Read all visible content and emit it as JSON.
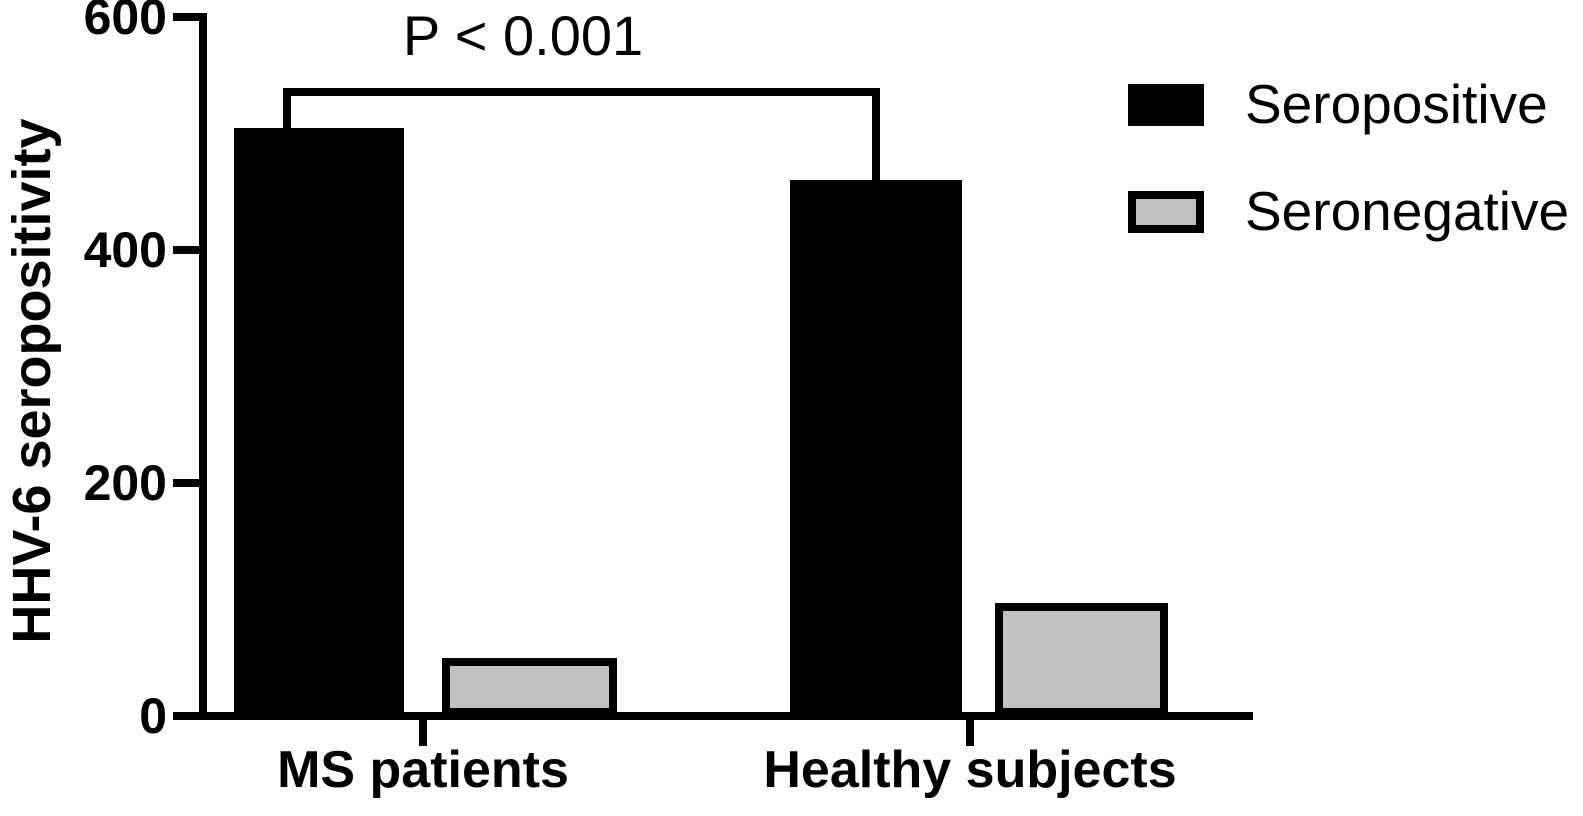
{
  "chart_data": {
    "type": "bar",
    "title": "",
    "xlabel": "",
    "ylabel": "HHV-6 seropositivity",
    "categories": [
      "MS patients",
      "Healthy subjects"
    ],
    "series": [
      {
        "name": "Seropositive",
        "color": "#000000",
        "values": [
          505,
          460
        ]
      },
      {
        "name": "Seronegative",
        "color": "#c1c1c1",
        "values": [
          50,
          97
        ]
      }
    ],
    "ylim": [
      0,
      600
    ],
    "yticks": [
      0,
      200,
      400,
      600
    ],
    "grid": false,
    "legend_position": "top-right",
    "annotation": {
      "text": "P < 0.001",
      "connects": [
        "MS patients Seropositive bar",
        "Healthy subjects Seropositive bar"
      ]
    }
  },
  "colors": {
    "bar_seropositive": "#000000",
    "bar_seronegative": "#c1c1c1",
    "axis": "#000000",
    "background": "#ffffff"
  }
}
